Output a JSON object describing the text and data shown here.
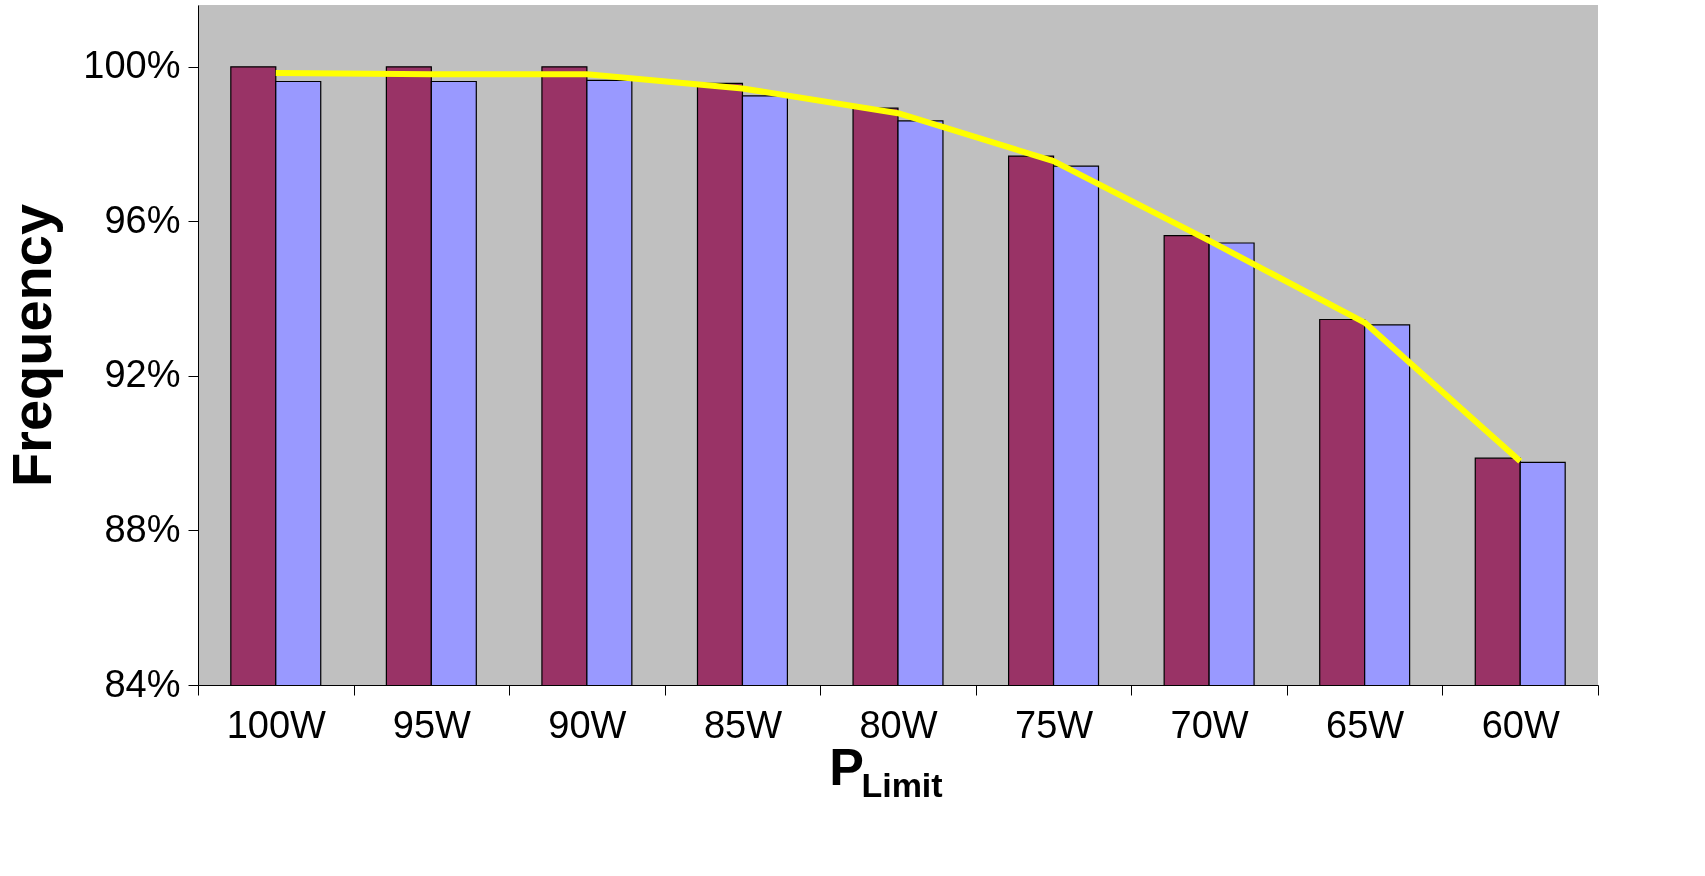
{
  "chart_data": {
    "type": "bar",
    "ylabel": "Frequency",
    "xlabel": "P$_{Limit}$",
    "categories": [
      "100W",
      "95W",
      "90W",
      "85W",
      "80W",
      "75W",
      "70W",
      "65W",
      "60W"
    ],
    "series": [
      {
        "color": "#993366",
        "values": [
          100.0,
          100.0,
          100.0,
          99.57,
          98.93,
          97.69,
          95.63,
          93.46,
          89.87
        ]
      },
      {
        "color": "#9999ff",
        "values": [
          99.62,
          99.62,
          99.65,
          99.25,
          98.6,
          97.43,
          95.44,
          93.32,
          89.76
        ]
      },
      {
        "type": "line",
        "color": "#ffff00",
        "values": [
          99.84,
          99.81,
          99.81,
          99.44,
          98.8,
          97.56,
          95.5,
          93.38,
          89.79
        ]
      }
    ],
    "ylim": [
      84,
      101.6
    ],
    "yticks": [
      {
        "value": 84,
        "label": "84%"
      },
      {
        "value": 88,
        "label": "88%"
      },
      {
        "value": 92,
        "label": "92%"
      },
      {
        "value": 96,
        "label": "96%"
      },
      {
        "value": 100,
        "label": "100%"
      }
    ],
    "grid": false
  }
}
